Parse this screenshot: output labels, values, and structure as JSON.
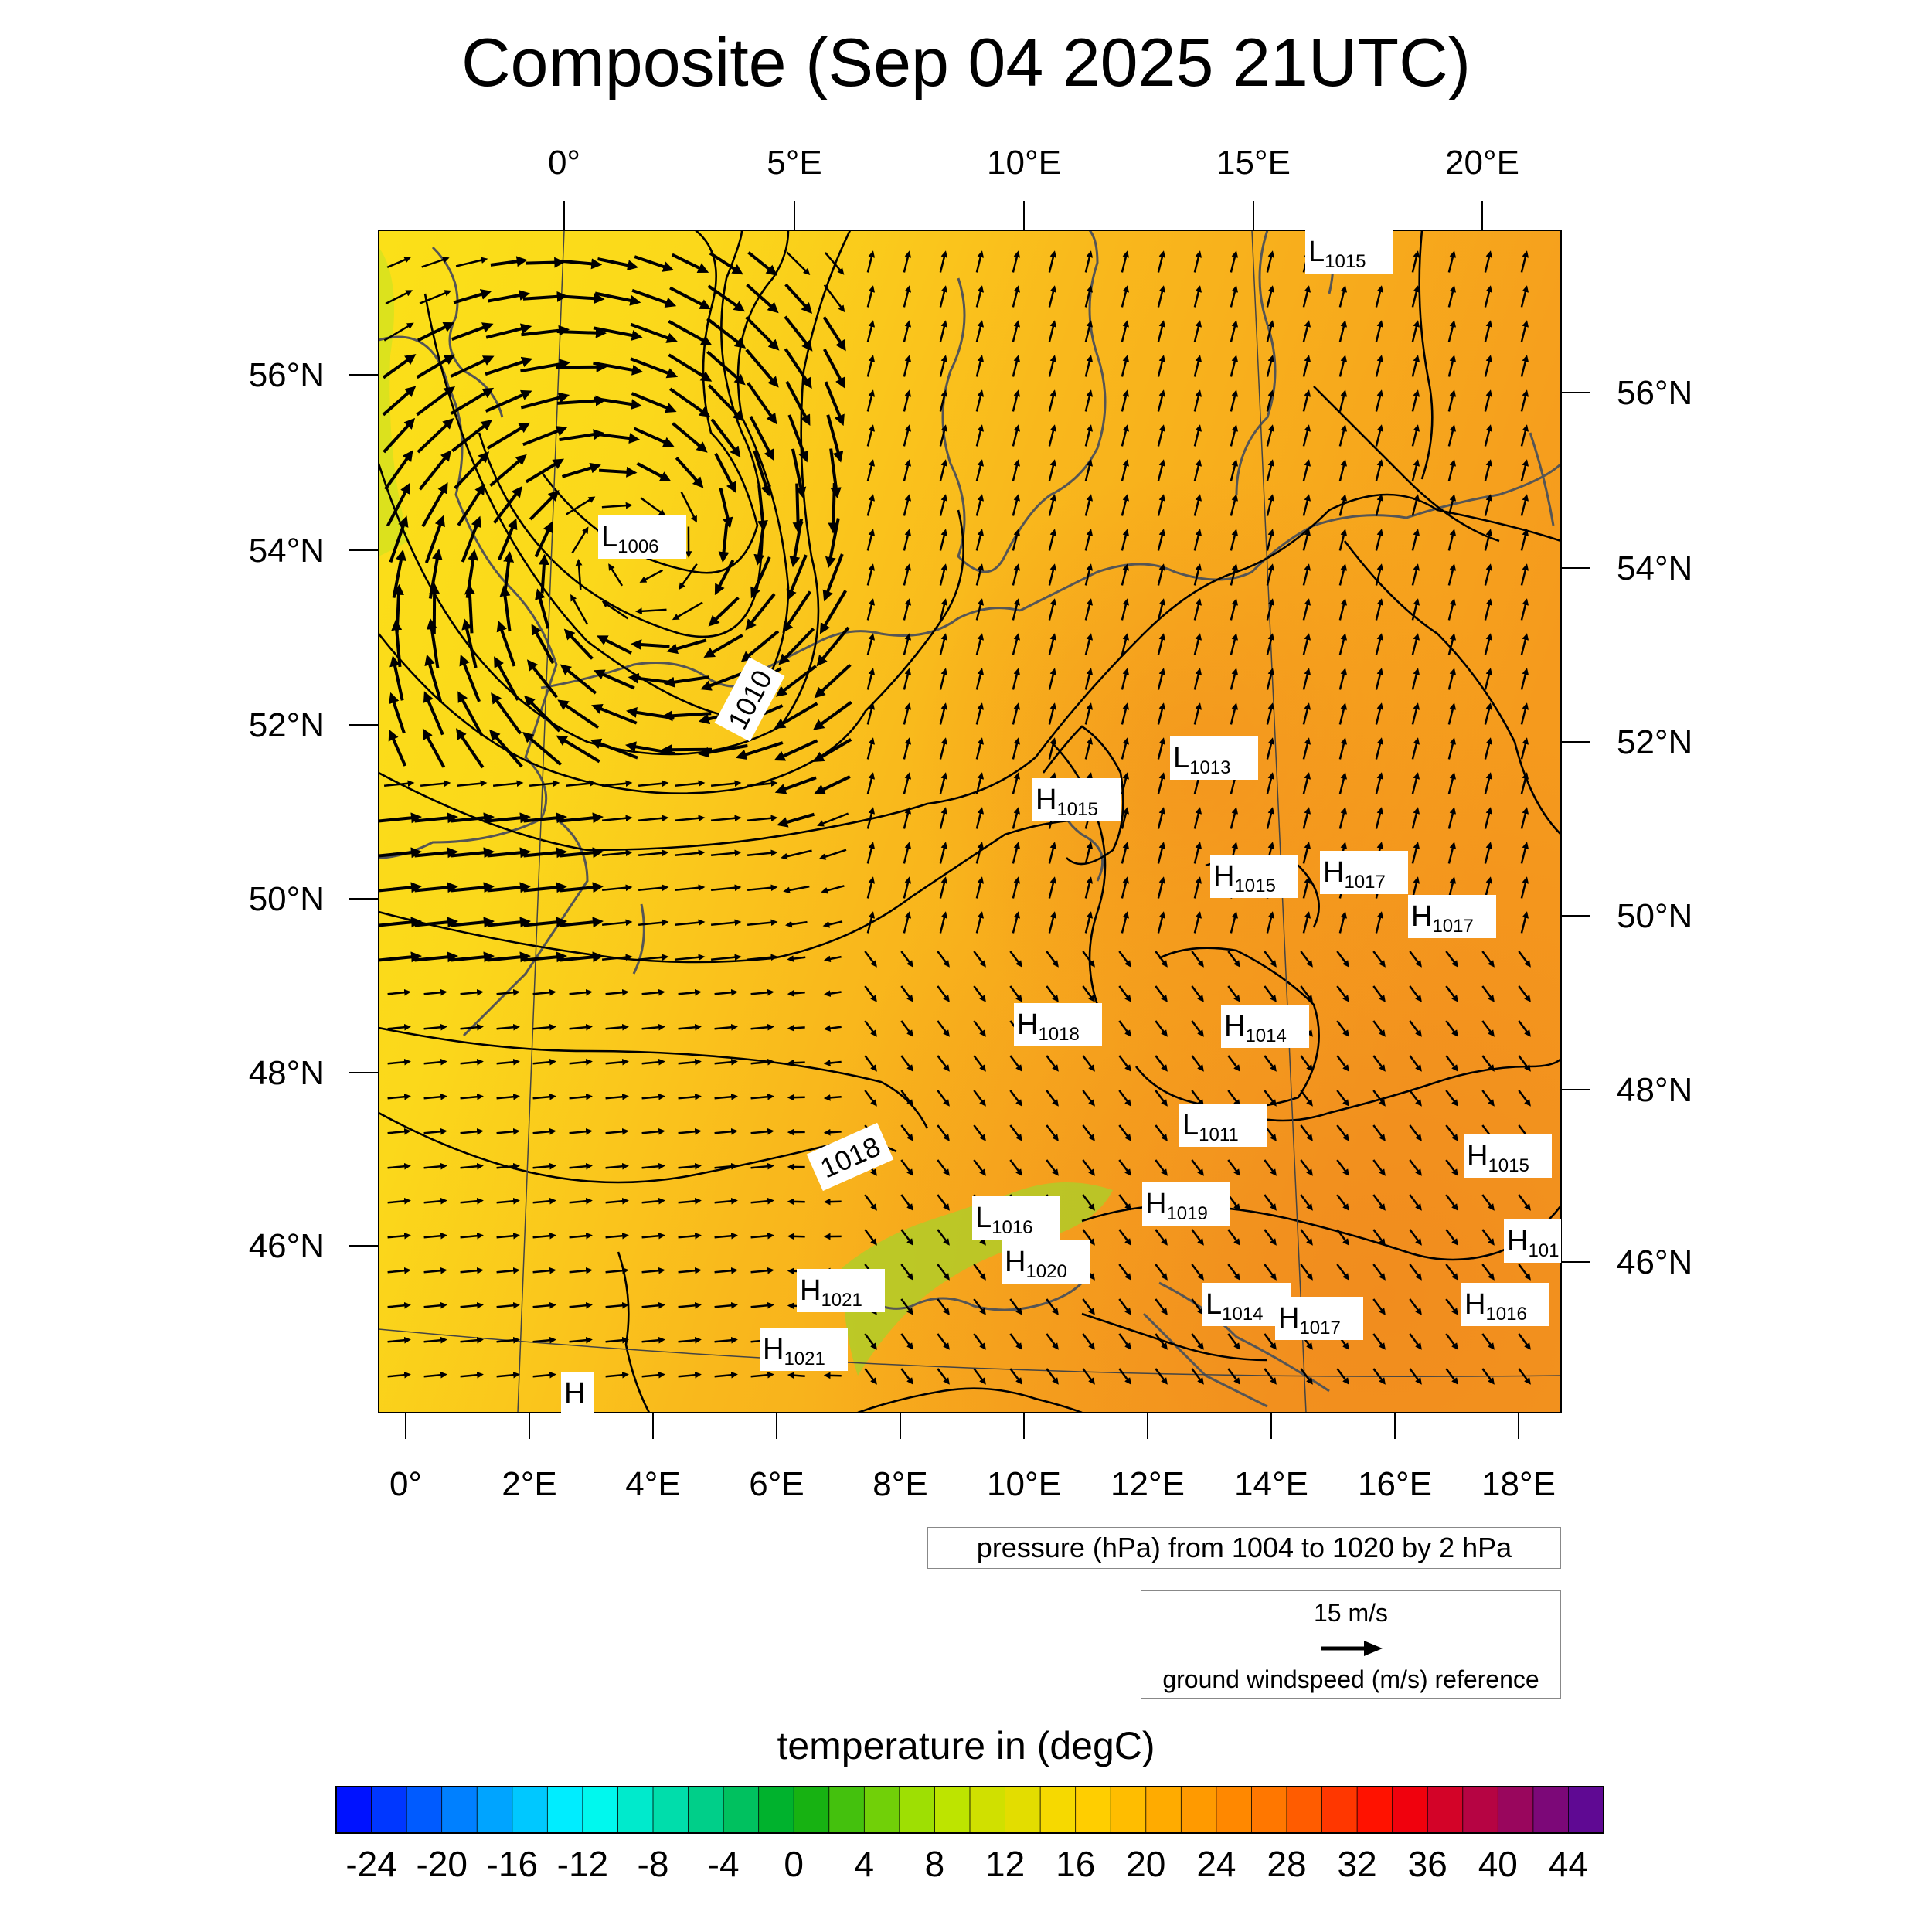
{
  "title": "Composite (Sep 04 2025 21UTC)",
  "map": {
    "top_lon_labels": [
      "0°",
      "5°E",
      "10°E",
      "15°E",
      "20°E"
    ],
    "bottom_lon_labels": [
      "0°",
      "2°E",
      "4°E",
      "6°E",
      "8°E",
      "10°E",
      "12°E",
      "14°E",
      "16°E",
      "18°E"
    ],
    "left_lat_labels": [
      "56°N",
      "54°N",
      "52°N",
      "50°N",
      "48°N",
      "46°N"
    ],
    "right_lat_labels": [
      "56°N",
      "54°N",
      "52°N",
      "50°N",
      "48°N",
      "46°N"
    ],
    "contour_labels": [
      "1010",
      "1018"
    ],
    "pressure_centers": [
      {
        "type": "L",
        "value": "1006"
      },
      {
        "type": "L",
        "value": "1015"
      },
      {
        "type": "L",
        "value": "1013"
      },
      {
        "type": "H",
        "value": "1015"
      },
      {
        "type": "H",
        "value": "1015"
      },
      {
        "type": "H",
        "value": "1017"
      },
      {
        "type": "H",
        "value": "1017"
      },
      {
        "type": "H",
        "value": "1018"
      },
      {
        "type": "H",
        "value": "1014"
      },
      {
        "type": "L",
        "value": "1011"
      },
      {
        "type": "H",
        "value": "1015"
      },
      {
        "type": "H",
        "value": "1019"
      },
      {
        "type": "L",
        "value": "1016"
      },
      {
        "type": "H",
        "value": "1020"
      },
      {
        "type": "H",
        "value": "1021"
      },
      {
        "type": "H",
        "value": "1021"
      },
      {
        "type": "L",
        "value": "1014"
      },
      {
        "type": "H",
        "value": "1017"
      },
      {
        "type": "H",
        "value": "1016"
      },
      {
        "type": "H",
        "value": "101"
      },
      {
        "type": "H",
        "value": ""
      }
    ]
  },
  "pressure_legend": "pressure (hPa) from 1004 to 1020 by 2 hPa",
  "wind_legend": {
    "speed": "15 m/s",
    "description": "ground windspeed (m/s) reference"
  },
  "colorbar": {
    "title": "temperature in (degC)",
    "min": -26,
    "max": 46,
    "step": 2,
    "tick_labels": [
      "-24",
      "-20",
      "-16",
      "-12",
      "-8",
      "-4",
      "0",
      "4",
      "8",
      "12",
      "16",
      "20",
      "24",
      "28",
      "32",
      "36",
      "40",
      "44"
    ]
  },
  "colors": {
    "land_warm": "#f7a21d",
    "land_mid": "#f9c21a",
    "land_cool": "#fbe018",
    "coast": "#555555"
  }
}
